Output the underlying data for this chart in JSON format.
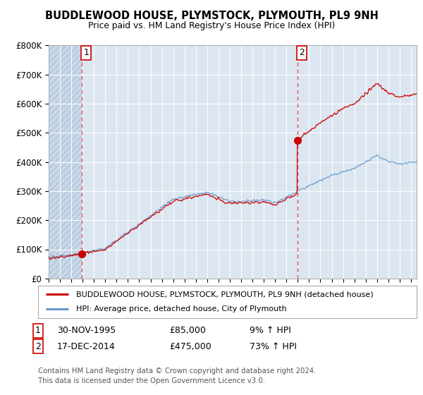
{
  "title1": "BUDDLEWOOD HOUSE, PLYMSTOCK, PLYMOUTH, PL9 9NH",
  "title2": "Price paid vs. HM Land Registry's House Price Index (HPI)",
  "bg_color": "#dce6f1",
  "plot_bg_color": "#dce6f1",
  "grid_color": "#ffffff",
  "red_line_color": "#cc0000",
  "blue_line_color": "#6699cc",
  "marker_color": "#cc0000",
  "vline_color": "#dd4444",
  "sale1_date_x": 1995.917,
  "sale1_price": 85000,
  "sale2_date_x": 2014.958,
  "sale2_price": 475000,
  "legend_label_red": "BUDDLEWOOD HOUSE, PLYMSTOCK, PLYMOUTH, PL9 9NH (detached house)",
  "legend_label_blue": "HPI: Average price, detached house, City of Plymouth",
  "note1_date": "30-NOV-1995",
  "note1_price": "£85,000",
  "note1_hpi": "9% ↑ HPI",
  "note2_date": "17-DEC-2014",
  "note2_price": "£475,000",
  "note2_hpi": "73% ↑ HPI",
  "footer": "Contains HM Land Registry data © Crown copyright and database right 2024.\nThis data is licensed under the Open Government Licence v3.0.",
  "xmin": 1993.0,
  "xmax": 2025.5,
  "ymin": 0,
  "ymax": 800000,
  "yticks": [
    0,
    100000,
    200000,
    300000,
    400000,
    500000,
    600000,
    700000,
    800000
  ],
  "ytick_labels": [
    "£0",
    "£100K",
    "£200K",
    "£300K",
    "£400K",
    "£500K",
    "£600K",
    "£700K",
    "£800K"
  ]
}
